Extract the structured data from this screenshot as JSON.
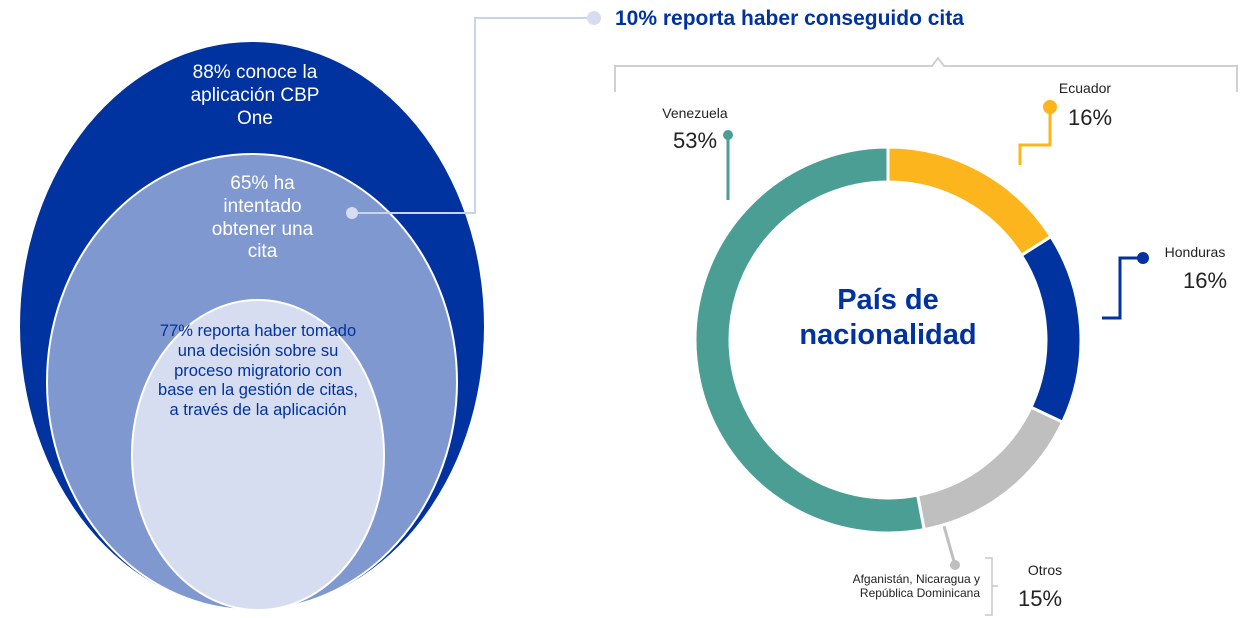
{
  "nested_circles": {
    "outer": "88% conoce la aplicación CBP One",
    "middle": "65% ha intentado obtener una cita",
    "inner": "77% reporta haber tomado una decisión sobre su proceso migratorio con base en la gestión de citas, a través de la aplicación"
  },
  "chart_data": {
    "type": "donut",
    "annotation": "10% reporta haber conseguido cita",
    "title": "País de nacionalidad",
    "categories": [
      "Ecuador",
      "Honduras",
      "Otros",
      "Venezuela"
    ],
    "values": [
      16,
      16,
      15,
      53
    ],
    "value_labels": [
      "16%",
      "16%",
      "15%",
      "53%"
    ],
    "colors": [
      "#FDB51D",
      "#0033A0",
      "#BFBFBF",
      "#4A9E94"
    ],
    "category_note": "Afganistán, Nicaragua y República Dominicana"
  }
}
